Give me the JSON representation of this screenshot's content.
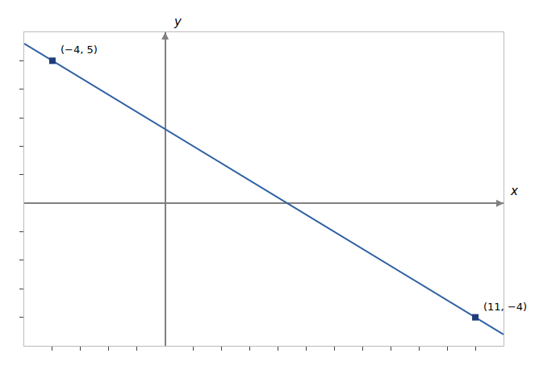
{
  "chart_data": {
    "type": "line",
    "xlabel": "x",
    "ylabel": "y",
    "series": [
      {
        "type": "line",
        "color": "#2E5FA3",
        "line_style": "solid",
        "x": [
          -5,
          12
        ],
        "values": [
          5.6,
          -4.6
        ]
      },
      {
        "type": "scatter",
        "color": "#1F3D7A",
        "marker": "square",
        "x": [
          -4,
          11
        ],
        "values": [
          5,
          -4
        ]
      }
    ],
    "annotations": [
      {
        "text": "(−4, 5)",
        "x": -4,
        "y": 5
      },
      {
        "text": "(11, −4)",
        "x": 11,
        "y": -4
      }
    ],
    "xlim": [
      -5,
      12
    ],
    "ylim": [
      -5,
      6
    ],
    "xticks": [
      -4,
      -3,
      -2,
      -1,
      1,
      2,
      3,
      4,
      5,
      6,
      7,
      8,
      9,
      10,
      11
    ],
    "yticks": [
      -4,
      -3,
      -2,
      -1,
      1,
      2,
      3,
      4,
      5
    ],
    "grid": false,
    "tick_labels": false
  }
}
